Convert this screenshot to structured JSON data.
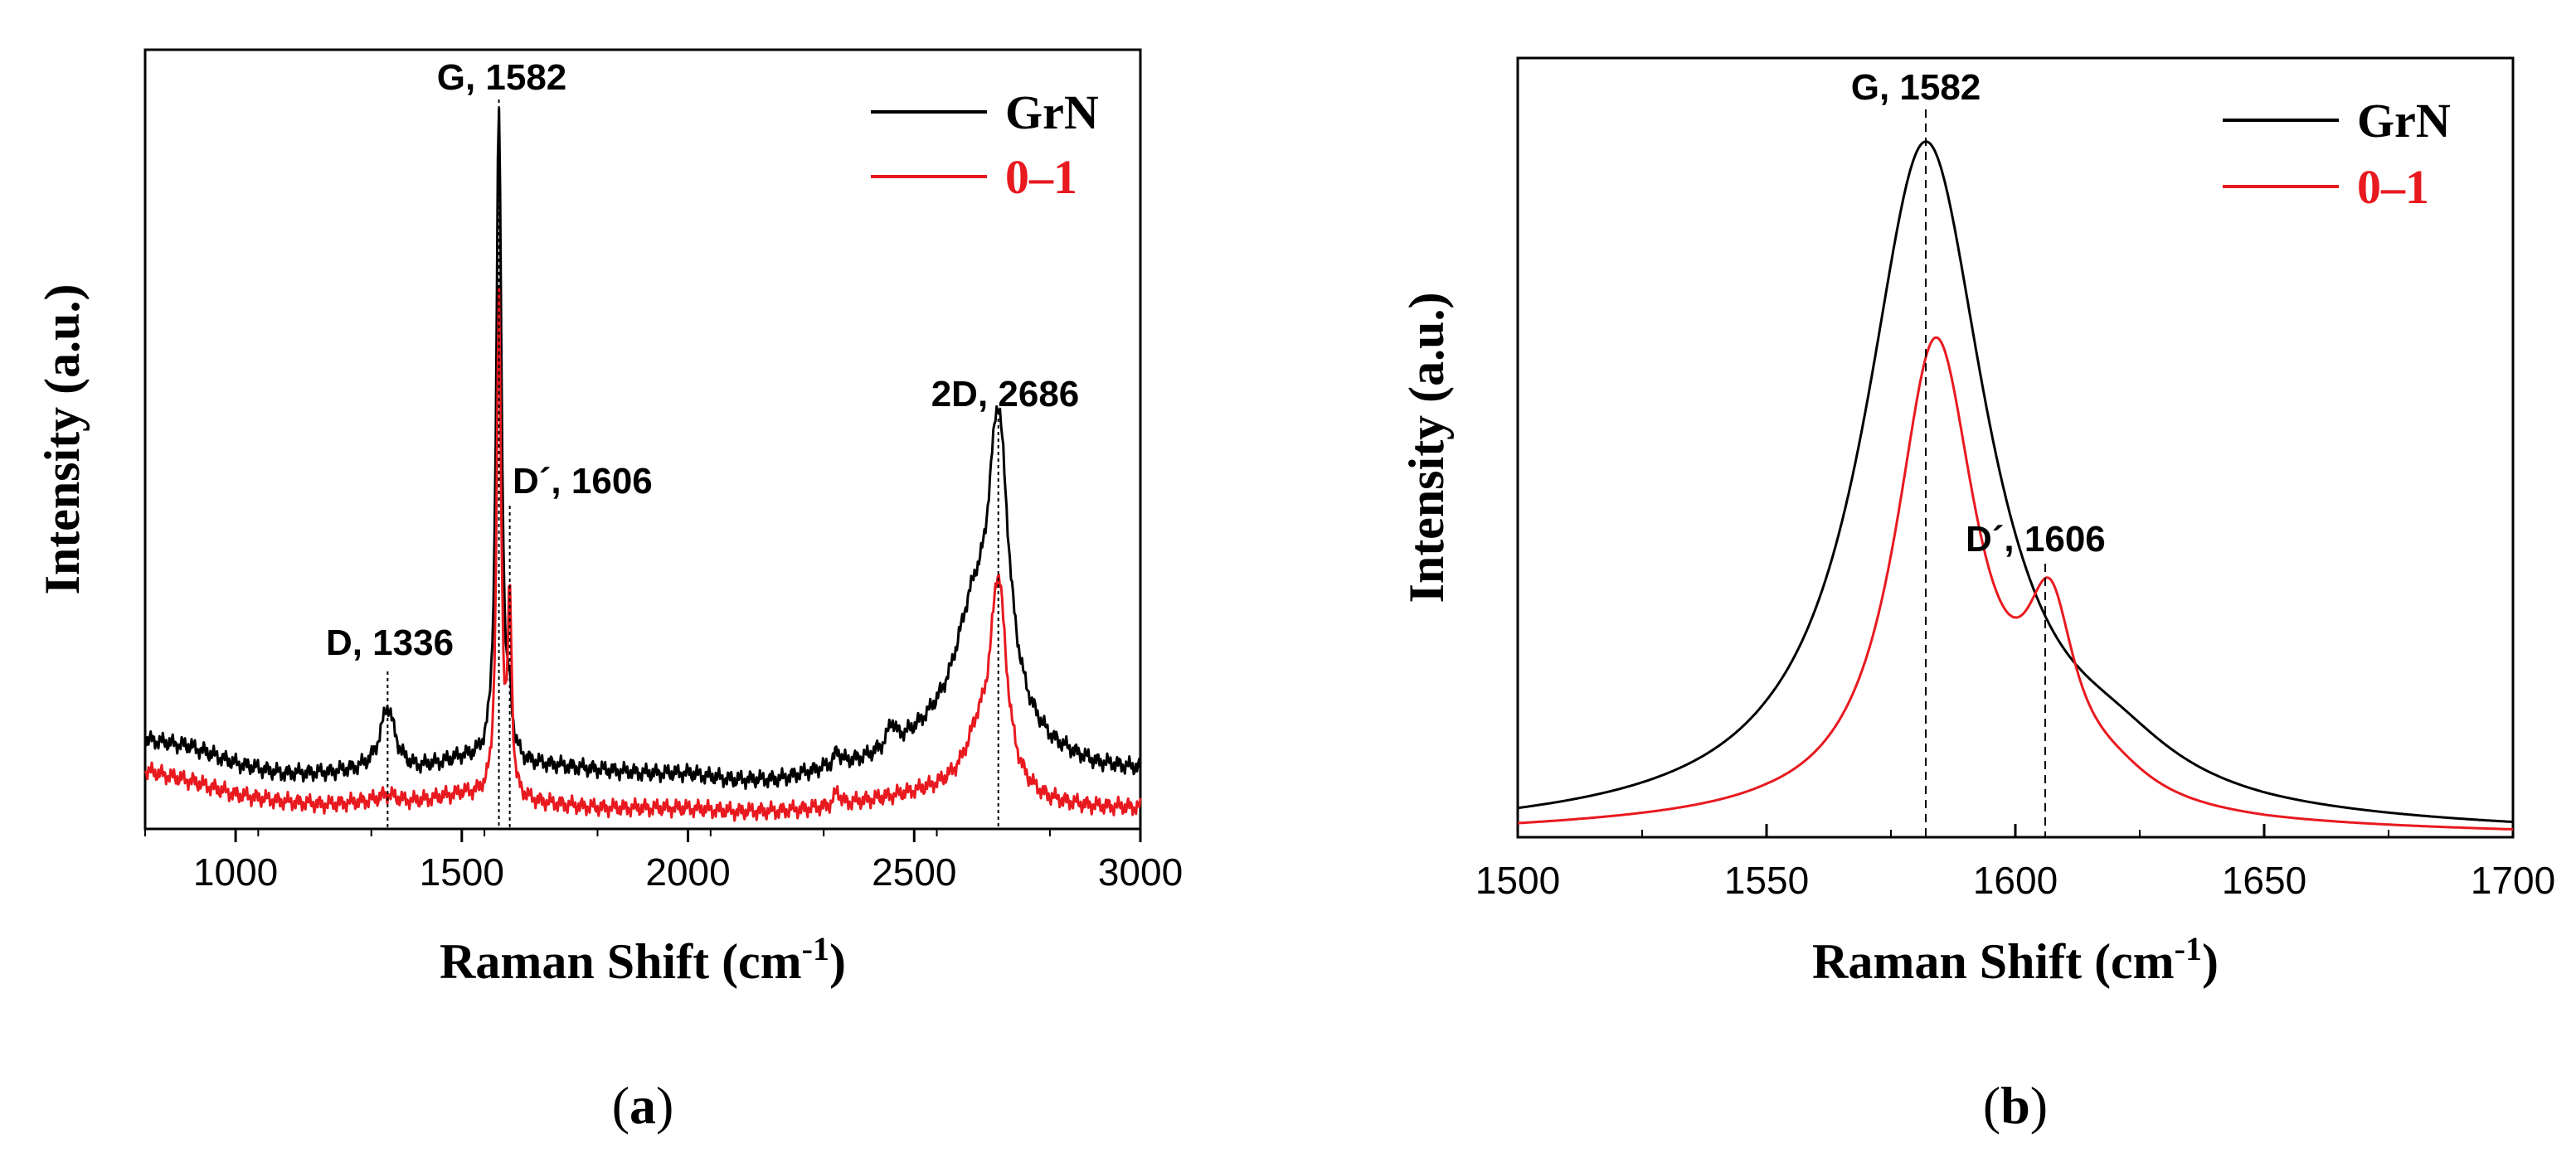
{
  "chart_data": [
    {
      "type": "line",
      "panel": "a",
      "panel_label": [
        "(",
        "a",
        ")"
      ],
      "xlabel": "Raman Shift (cm",
      "xlabel_sup": "-1",
      "xlabel_end": ")",
      "ylabel": "Intensity (a.u.)",
      "xlim": [
        800,
        3000
      ],
      "ylim": [
        0,
        1.13
      ],
      "xticks": [
        1000,
        1500,
        2000,
        2500,
        3000
      ],
      "xtick_labels": [
        "1000",
        "1500",
        "2000",
        "2500",
        "3000"
      ],
      "series": [
        {
          "name": "GrN",
          "color": "#000000",
          "baseline": [
            [
              800,
              0.13
            ],
            [
              900,
              0.12
            ],
            [
              1000,
              0.095
            ],
            [
              1100,
              0.08
            ],
            [
              1200,
              0.08
            ],
            [
              1300,
              0.085
            ],
            [
              1400,
              0.085
            ],
            [
              1500,
              0.1
            ],
            [
              1600,
              0.09
            ],
            [
              1700,
              0.09
            ],
            [
              1800,
              0.085
            ],
            [
              1900,
              0.08
            ],
            [
              2000,
              0.08
            ],
            [
              2100,
              0.07
            ],
            [
              2200,
              0.07
            ],
            [
              2300,
              0.085
            ],
            [
              2400,
              0.1
            ],
            [
              2500,
              0.13
            ],
            [
              2600,
              0.17
            ],
            [
              2700,
              0.15
            ],
            [
              2800,
              0.11
            ],
            [
              2900,
              0.09
            ],
            [
              3000,
              0.085
            ]
          ],
          "peaks": [
            {
              "center": 1336,
              "height": 0.09,
              "width": 20
            },
            {
              "center": 1582,
              "height": 0.95,
              "width": 7
            },
            {
              "center": 1606,
              "height": 0.06,
              "width": 6
            },
            {
              "center": 2686,
              "height": 0.42,
              "width": 27
            },
            {
              "center": 2630,
              "height": 0.12,
              "width": 40
            },
            {
              "center": 2330,
              "height": 0.02,
              "width": 8
            },
            {
              "center": 2450,
              "height": 0.03,
              "width": 10
            }
          ]
        },
        {
          "name": "0–1",
          "color": "#e8191f",
          "baseline": [
            [
              800,
              0.085
            ],
            [
              900,
              0.07
            ],
            [
              1000,
              0.05
            ],
            [
              1100,
              0.04
            ],
            [
              1200,
              0.035
            ],
            [
              1300,
              0.04
            ],
            [
              1400,
              0.04
            ],
            [
              1500,
              0.05
            ],
            [
              1600,
              0.04
            ],
            [
              1700,
              0.035
            ],
            [
              1800,
              0.03
            ],
            [
              1900,
              0.03
            ],
            [
              2000,
              0.03
            ],
            [
              2100,
              0.025
            ],
            [
              2200,
              0.025
            ],
            [
              2300,
              0.03
            ],
            [
              2400,
              0.04
            ],
            [
              2500,
              0.05
            ],
            [
              2600,
              0.06
            ],
            [
              2700,
              0.05
            ],
            [
              2800,
              0.035
            ],
            [
              2900,
              0.03
            ],
            [
              3000,
              0.03
            ]
          ],
          "peaks": [
            {
              "center": 1336,
              "height": 0.01,
              "width": 20
            },
            {
              "center": 1582,
              "height": 0.72,
              "width": 6
            },
            {
              "center": 1606,
              "height": 0.28,
              "width": 5
            },
            {
              "center": 2686,
              "height": 0.3,
              "width": 22
            },
            {
              "center": 2640,
              "height": 0.06,
              "width": 30
            },
            {
              "center": 2330,
              "height": 0.02,
              "width": 8
            }
          ]
        }
      ],
      "annotations": [
        {
          "text": "G, 1582",
          "x": 1582
        },
        {
          "text": "D, 1336",
          "x": 1336
        },
        {
          "text": "D´, 1606",
          "x": 1606
        },
        {
          "text": "2D, 2686",
          "x": 2686
        }
      ],
      "legend": [
        "GrN",
        "0–1"
      ]
    },
    {
      "type": "line",
      "panel": "b",
      "panel_label": [
        "(",
        "b",
        ")"
      ],
      "xlabel": "Raman Shift (cm",
      "xlabel_sup": "-1",
      "xlabel_end": ")",
      "ylabel": "Intensity (a.u.)",
      "xlim": [
        1500,
        1700
      ],
      "ylim": [
        0,
        1.15
      ],
      "xticks": [
        1500,
        1550,
        1600,
        1650,
        1700
      ],
      "xtick_labels": [
        "1500",
        "1550",
        "1600",
        "1650",
        "1700"
      ],
      "series": [
        {
          "name": "GrN",
          "color": "#000000",
          "baseline": [
            [
              1500,
              0.01
            ],
            [
              1550,
              0.02
            ],
            [
              1600,
              0.02
            ],
            [
              1650,
              0.01
            ],
            [
              1700,
              0.005
            ]
          ],
          "peaks": [
            {
              "center": 1582,
              "height": 1.0,
              "width": 15
            },
            {
              "center": 1620,
              "height": 0.05,
              "width": 15
            }
          ]
        },
        {
          "name": "0–1",
          "color": "#e8191f",
          "baseline": [
            [
              1500,
              0.01
            ],
            [
              1550,
              0.02
            ],
            [
              1600,
              0.02
            ],
            [
              1650,
              0.01
            ],
            [
              1700,
              0.005
            ]
          ],
          "peaks": [
            {
              "center": 1584,
              "height": 0.7,
              "width": 10
            },
            {
              "center": 1607,
              "height": 0.24,
              "width": 6
            },
            {
              "center": 1620,
              "height": 0.03,
              "width": 10
            }
          ]
        }
      ],
      "annotations": [
        {
          "text": "G, 1582",
          "x": 1582
        },
        {
          "text": "D´, 1606",
          "x": 1606
        }
      ],
      "legend": [
        "GrN",
        "0–1"
      ]
    }
  ]
}
